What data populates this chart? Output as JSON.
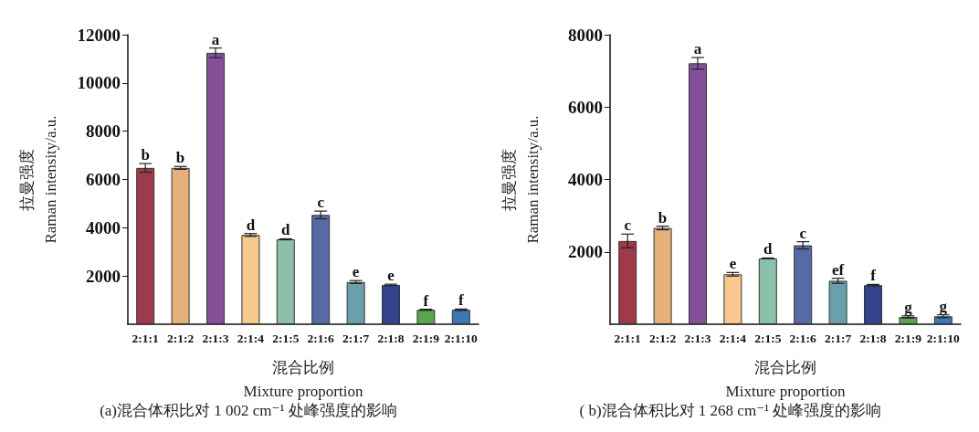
{
  "chart_data": [
    {
      "type": "bar",
      "title": "(a)混合体积比对 1 002 cm⁻¹ 处峰强度的影响",
      "xlabel": "混合比例\nMixture proportion",
      "ylabel": "拉曼强度\nRaman intensity/a.u.",
      "categories": [
        "2:1:1",
        "2:1:2",
        "2:1:3",
        "2:1:4",
        "2:1:5",
        "2:1:6",
        "2:1:7",
        "2:1:8",
        "2:1:9",
        "2:1:10"
      ],
      "values": [
        6480,
        6480,
        11250,
        3700,
        3520,
        4530,
        1750,
        1630,
        600,
        600
      ],
      "errors": [
        180,
        60,
        200,
        60,
        20,
        160,
        60,
        30,
        20,
        30
      ],
      "value_labels": [
        "b",
        "b",
        "a",
        "d",
        "d",
        "c",
        "e",
        "e",
        "f",
        "f"
      ],
      "colors": [
        "#9e3a4a",
        "#e6b07a",
        "#85509a",
        "#f9c990",
        "#8dc0a8",
        "#566aa6",
        "#6aa0ab",
        "#33448f",
        "#5aa64c",
        "#3e77b8"
      ],
      "ylim": [
        0,
        12000
      ],
      "yticks": [
        2000,
        4000,
        6000,
        8000,
        10000,
        12000
      ]
    },
    {
      "type": "bar",
      "title": "( b)混合体积比对 1 268 cm⁻¹ 处峰强度的影响",
      "xlabel": "混合比例\nMixture proportion",
      "ylabel": "拉曼强度\nRaman intensity/a.u.",
      "categories": [
        "2:1:1",
        "2:1:2",
        "2:1:3",
        "2:1:4",
        "2:1:5",
        "2:1:6",
        "2:1:7",
        "2:1:8",
        "2:1:9",
        "2:1:10"
      ],
      "values": [
        2300,
        2660,
        7210,
        1380,
        1820,
        2180,
        1200,
        1080,
        200,
        220
      ],
      "errors": [
        190,
        50,
        160,
        50,
        10,
        100,
        70,
        20,
        30,
        40
      ],
      "value_labels": [
        "c",
        "b",
        "a",
        "e",
        "d",
        "c",
        "ef",
        "f",
        "g",
        "g"
      ],
      "colors": [
        "#9e3a4a",
        "#e6b07a",
        "#85509a",
        "#f9c990",
        "#8dc0a8",
        "#566aa6",
        "#6aa0ab",
        "#33448f",
        "#5aa64c",
        "#3e77b8"
      ],
      "ylim": [
        0,
        8000
      ],
      "yticks": [
        2000,
        4000,
        6000,
        8000
      ]
    }
  ]
}
